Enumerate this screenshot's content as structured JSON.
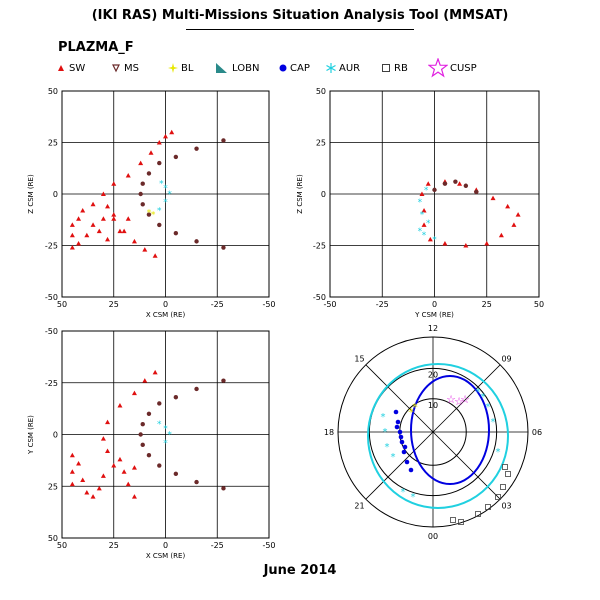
{
  "title": "(IKI RAS) Multi-Missions Situation Analysis Tool (MMSAT)",
  "subtitle": "PLAZMA_F",
  "footer": "June 2014",
  "legend": [
    {
      "label": "SW",
      "symbol": "triangle",
      "color": "#e01010"
    },
    {
      "label": "MS",
      "symbol": "triangle-down",
      "color": "#6b2a2a"
    },
    {
      "label": "BL",
      "symbol": "star4",
      "color": "#e8e800"
    },
    {
      "label": "LOBN",
      "symbol": "wedge",
      "color": "#2a8a8a"
    },
    {
      "label": "CAP",
      "symbol": "dot",
      "color": "#0000e0"
    },
    {
      "label": "AUR",
      "symbol": "asterisk",
      "color": "#20d0e0"
    },
    {
      "label": "RB",
      "symbol": "square",
      "color": "#404040"
    },
    {
      "label": "CUSP",
      "symbol": "star5",
      "color": "#e020e0"
    }
  ],
  "chart_data": [
    {
      "type": "scatter",
      "xlabel": "X CSM (RE)",
      "ylabel": "Z CSM (RE)",
      "xlim": [
        50,
        -50
      ],
      "ylim": [
        -50,
        50
      ],
      "xticks": [
        "50",
        "25",
        "0",
        "-25",
        "-50"
      ],
      "yticks": [
        "50",
        "25",
        "0",
        "-25",
        "-50"
      ],
      "grid": true,
      "series": [
        {
          "name": "SW",
          "points": [
            [
              5,
              -30
            ],
            [
              10,
              -27
            ],
            [
              15,
              -23
            ],
            [
              20,
              -18
            ],
            [
              25,
              -12
            ],
            [
              28,
              -6
            ],
            [
              30,
              0
            ],
            [
              25,
              5
            ],
            [
              18,
              9
            ],
            [
              12,
              15
            ],
            [
              7,
              20
            ],
            [
              3,
              25
            ],
            [
              0,
              28
            ],
            [
              -3,
              30
            ],
            [
              35,
              -5
            ],
            [
              40,
              -8
            ],
            [
              42,
              -12
            ],
            [
              45,
              -15
            ],
            [
              45,
              -20
            ],
            [
              42,
              -24
            ],
            [
              45,
              -26
            ],
            [
              38,
              -20
            ],
            [
              35,
              -15
            ],
            [
              30,
              -12
            ],
            [
              25,
              -10
            ],
            [
              32,
              -18
            ],
            [
              28,
              -22
            ],
            [
              22,
              -18
            ],
            [
              18,
              -12
            ]
          ]
        },
        {
          "name": "MS",
          "points": [
            [
              12,
              0
            ],
            [
              11,
              5
            ],
            [
              8,
              10
            ],
            [
              3,
              15
            ],
            [
              -5,
              18
            ],
            [
              -15,
              22
            ],
            [
              -28,
              26
            ],
            [
              11,
              -5
            ],
            [
              8,
              -10
            ],
            [
              3,
              -15
            ],
            [
              -5,
              -19
            ],
            [
              -15,
              -23
            ],
            [
              -28,
              -26
            ]
          ]
        },
        {
          "name": "AUR",
          "points": [
            [
              2,
              5
            ],
            [
              0,
              3
            ],
            [
              -2,
              0
            ],
            [
              0,
              -4
            ],
            [
              3,
              -8
            ]
          ]
        },
        {
          "name": "BL",
          "points": [
            [
              8,
              -9
            ],
            [
              6,
              -10
            ]
          ]
        }
      ]
    },
    {
      "type": "scatter",
      "xlabel": "Y CSM (RE)",
      "ylabel": "Z CSM (RE)",
      "xlim": [
        -50,
        50
      ],
      "ylim": [
        -50,
        50
      ],
      "xticks": [
        "-50",
        "-25",
        "0",
        "25",
        "50"
      ],
      "yticks": [
        "50",
        "25",
        "0",
        "-25",
        "-50"
      ],
      "grid": true,
      "series": [
        {
          "name": "SW",
          "points": [
            [
              -5,
              -15
            ],
            [
              -2,
              -22
            ],
            [
              5,
              -24
            ],
            [
              15,
              -25
            ],
            [
              25,
              -24
            ],
            [
              32,
              -20
            ],
            [
              38,
              -15
            ],
            [
              40,
              -10
            ],
            [
              35,
              -6
            ],
            [
              28,
              -2
            ],
            [
              20,
              2
            ],
            [
              12,
              5
            ],
            [
              5,
              6
            ],
            [
              -3,
              5
            ],
            [
              -6,
              0
            ],
            [
              -5,
              -8
            ]
          ]
        },
        {
          "name": "MS",
          "points": [
            [
              0,
              2
            ],
            [
              5,
              5
            ],
            [
              10,
              6
            ],
            [
              15,
              4
            ],
            [
              20,
              1
            ]
          ]
        },
        {
          "name": "AUR",
          "points": [
            [
              -7,
              -4
            ],
            [
              -6,
              -10
            ],
            [
              -3,
              -14
            ],
            [
              -7,
              -18
            ],
            [
              -5,
              -20
            ],
            [
              0,
              -22
            ],
            [
              -4,
              2
            ]
          ]
        }
      ]
    },
    {
      "type": "scatter",
      "xlabel": "X CSM (RE)",
      "ylabel": "Y CSM (RE)",
      "xlim": [
        50,
        -50
      ],
      "ylim": [
        -50,
        50
      ],
      "xticks": [
        "50",
        "25",
        "0",
        "-25",
        "-50"
      ],
      "yticks": [
        "-50",
        "-25",
        "0",
        "25",
        "50"
      ],
      "grid": true,
      "series": [
        {
          "name": "SW",
          "points": [
            [
              5,
              -30
            ],
            [
              10,
              -26
            ],
            [
              15,
              -20
            ],
            [
              22,
              -14
            ],
            [
              28,
              -6
            ],
            [
              30,
              2
            ],
            [
              28,
              8
            ],
            [
              22,
              12
            ],
            [
              15,
              16
            ],
            [
              45,
              10
            ],
            [
              42,
              14
            ],
            [
              45,
              18
            ],
            [
              40,
              22
            ],
            [
              45,
              24
            ],
            [
              38,
              28
            ],
            [
              35,
              30
            ],
            [
              32,
              26
            ],
            [
              30,
              20
            ],
            [
              25,
              15
            ],
            [
              20,
              18
            ],
            [
              18,
              24
            ],
            [
              15,
              30
            ]
          ]
        },
        {
          "name": "MS",
          "points": [
            [
              12,
              0
            ],
            [
              11,
              -5
            ],
            [
              8,
              -10
            ],
            [
              3,
              -15
            ],
            [
              -5,
              -18
            ],
            [
              -15,
              -22
            ],
            [
              -28,
              -26
            ],
            [
              11,
              5
            ],
            [
              8,
              10
            ],
            [
              3,
              15
            ],
            [
              -5,
              19
            ],
            [
              -15,
              23
            ],
            [
              -28,
              26
            ]
          ]
        },
        {
          "name": "AUR",
          "points": [
            [
              3,
              -5
            ],
            [
              0,
              -3
            ],
            [
              -2,
              0
            ],
            [
              0,
              4
            ]
          ]
        }
      ]
    },
    {
      "type": "scatter",
      "polar": true,
      "mlt_labels": [
        "12",
        "09",
        "06",
        "03",
        "00",
        "21",
        "18",
        "15"
      ],
      "lat_labels": [
        "20",
        "10"
      ]
    }
  ]
}
